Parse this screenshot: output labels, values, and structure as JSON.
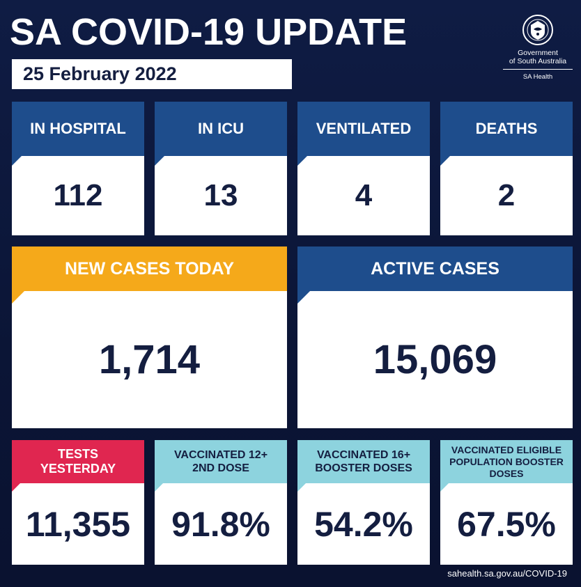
{
  "header": {
    "title": "SA COVID-19 UPDATE",
    "date": "25 February 2022"
  },
  "logo": {
    "line1": "Government",
    "line2": "of South Australia",
    "department": "SA Health",
    "emblem_icon": "sa-government-emblem-icon"
  },
  "row1": [
    {
      "label": "IN HOSPITAL",
      "value": "112"
    },
    {
      "label": "IN ICU",
      "value": "13"
    },
    {
      "label": "VENTILATED",
      "value": "4"
    },
    {
      "label": "DEATHS",
      "value": "2"
    }
  ],
  "row2": [
    {
      "label": "NEW CASES TODAY",
      "value": "1,714"
    },
    {
      "label": "ACTIVE CASES",
      "value": "15,069"
    }
  ],
  "row3": [
    {
      "label": "TESTS YESTERDAY",
      "value": "11,355"
    },
    {
      "label": "VACCINATED 12+ 2ND DOSE",
      "value": "91.8%"
    },
    {
      "label": "VACCINATED 16+ BOOSTER DOSES",
      "value": "54.2%"
    },
    {
      "label": "VACCINATED ELIGIBLE POPULATION BOOSTER DOSES",
      "value": "67.5%"
    }
  ],
  "colors": {
    "background": "#0b1433",
    "blue_header": "#1e4d8c",
    "orange_header": "#f5a91a",
    "red_header": "#e02650",
    "teal_header": "#8dd3de",
    "value_text": "#141e40"
  },
  "footer": {
    "url": "sahealth.sa.gov.au/COVID-19"
  }
}
